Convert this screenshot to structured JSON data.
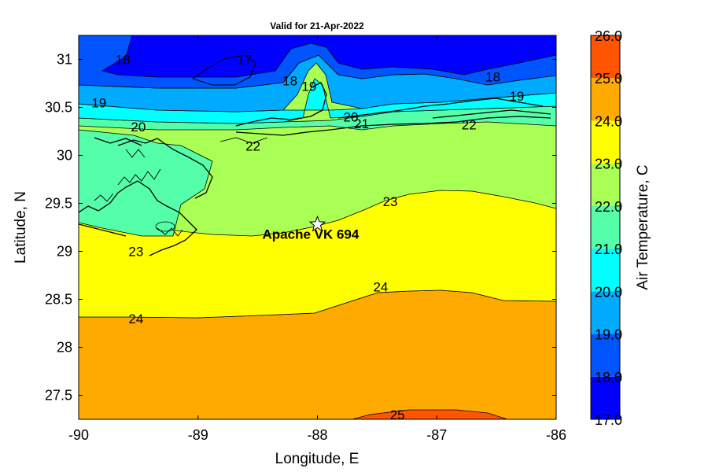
{
  "chart_data": {
    "type": "heatmap",
    "title": "Valid for 21-Apr-2022",
    "xlabel": "Longitude, E",
    "ylabel": "Latitude, N",
    "xlim": [
      -90,
      -86
    ],
    "ylim": [
      27.25,
      31.25
    ],
    "xticks": [
      "-90",
      "-89",
      "-88",
      "-87",
      "-86"
    ],
    "yticks": [
      "27.5",
      "28",
      "28.5",
      "29",
      "29.5",
      "30",
      "30.5",
      "31"
    ],
    "colorbar": {
      "label": "Air Temperature, C",
      "range": [
        17.0,
        26.0
      ],
      "ticks": [
        "17.0",
        "18.0",
        "19.0",
        "20.0",
        "21.0",
        "22.0",
        "23.0",
        "24.0",
        "25.0",
        "26.0"
      ],
      "levels": [
        {
          "from": 17,
          "to": 18,
          "color": "#0000ff"
        },
        {
          "from": 18,
          "to": 19,
          "color": "#0055ff"
        },
        {
          "from": 19,
          "to": 20,
          "color": "#00aaff"
        },
        {
          "from": 20,
          "to": 21,
          "color": "#00ffff"
        },
        {
          "from": 21,
          "to": 22,
          "color": "#55ffaa"
        },
        {
          "from": 22,
          "to": 23,
          "color": "#aaff55"
        },
        {
          "from": 23,
          "to": 24,
          "color": "#ffff00"
        },
        {
          "from": 24,
          "to": 25,
          "color": "#ffaa00"
        },
        {
          "from": 25,
          "to": 26,
          "color": "#ff5500"
        }
      ]
    },
    "contour_labels": [
      {
        "text": "18",
        "lon": -89.63,
        "lat": 31.0
      },
      {
        "text": "17",
        "lon": -88.61,
        "lat": 31.0
      },
      {
        "text": "18",
        "lon": -88.23,
        "lat": 30.78
      },
      {
        "text": "19",
        "lon": -88.07,
        "lat": 30.72
      },
      {
        "text": "18",
        "lon": -86.53,
        "lat": 30.82
      },
      {
        "text": "19",
        "lon": -86.33,
        "lat": 30.62
      },
      {
        "text": "19",
        "lon": -89.83,
        "lat": 30.55
      },
      {
        "text": "20",
        "lon": -89.5,
        "lat": 30.3
      },
      {
        "text": "20",
        "lon": -87.72,
        "lat": 30.4
      },
      {
        "text": "21",
        "lon": -87.63,
        "lat": 30.33
      },
      {
        "text": "22",
        "lon": -86.73,
        "lat": 30.32
      },
      {
        "text": "22",
        "lon": -88.54,
        "lat": 30.1
      },
      {
        "text": "23",
        "lon": -87.39,
        "lat": 29.52
      },
      {
        "text": "23",
        "lon": -89.52,
        "lat": 29.0
      },
      {
        "text": "24",
        "lon": -87.47,
        "lat": 28.63
      },
      {
        "text": "24",
        "lon": -89.52,
        "lat": 28.3
      },
      {
        "text": "25",
        "lon": -87.33,
        "lat": 27.3
      }
    ],
    "station": {
      "name": "Apache VK 694",
      "lon": -88.0,
      "lat": 29.28
    },
    "grid": false,
    "legend": "colorbar-right"
  }
}
